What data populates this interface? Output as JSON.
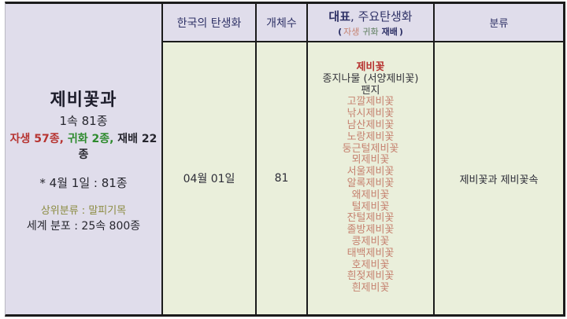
{
  "header": {
    "birth_flower_col": "한국의 탄생화",
    "count_col": "개체수",
    "main_col_bold": "대표",
    "main_col_rest": ", 주요탄생화",
    "main_sub_open": "(",
    "main_sub_native": "자생",
    "main_sub_naturalized": "귀화",
    "main_sub_cultivated": "재배",
    "main_sub_close": ")",
    "classification_col": "분류"
  },
  "family_cell": {
    "title": "제비꽃과",
    "summary": "1속 81종",
    "native": "자생 57종,",
    "naturalized": "귀화 2종,",
    "cultivated": "재배 22종",
    "date_line": "* 4월 1일 : 81종",
    "higher_taxon": "상위분류 : 말피기목",
    "world_distribution": "세계 분포 : 25속 800종"
  },
  "body": {
    "birth_date": "04월 01일",
    "count": "81",
    "classification": "제비꽃과 제비꽃속"
  },
  "species": [
    "제비꽃",
    "종지나물 (서양제비꽃)",
    "팬지",
    "고깔제비꽃",
    "낚시제비꽃",
    "남산제비꽃",
    "노랑제비꽃",
    "둥근털제비꽃",
    "뫼제비꽃",
    "서울제비꽃",
    "알록제비꽃",
    "왜제비꽃",
    "털제비꽃",
    "잔털제비꽃",
    "졸방제비꽃",
    "콩제비꽃",
    "태백제비꽃",
    "호제비꽃",
    "흰젖제비꽃",
    "흰제비꽃"
  ],
  "colors": {
    "border": "#1b1b1b",
    "lavender": "#e0ddeb",
    "green_bg": "#eaefdb",
    "navy": "#2e3166",
    "crimson": "#b73431",
    "salmon": "#c5816f",
    "green": "#2e8b2e",
    "olive": "#8b8b40"
  }
}
